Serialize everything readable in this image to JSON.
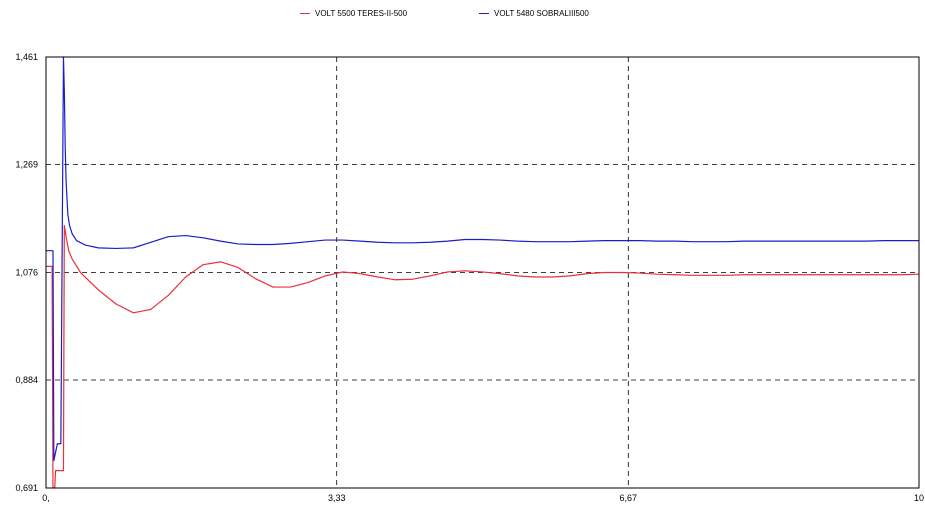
{
  "chart_data": {
    "type": "line",
    "title": "",
    "xlabel": "",
    "ylabel": "",
    "xlim": [
      0,
      10
    ],
    "ylim": [
      0.691,
      1.461
    ],
    "x_ticks": [
      "0,",
      "3,33",
      "6,67",
      "10"
    ],
    "y_ticks": [
      "0,691",
      "0,884",
      "1,076",
      "1,269",
      "1,461"
    ],
    "x_tick_values": [
      0,
      3.33,
      6.67,
      10
    ],
    "y_tick_values": [
      0.691,
      0.884,
      1.076,
      1.269,
      1.461
    ],
    "grid": true,
    "legend_position": "top",
    "series": [
      {
        "name": "VOLT 5500 TERES-II-500",
        "color": "#e8303a",
        "x": [
          0,
          0.07,
          0.08,
          0.1,
          0.11,
          0.2,
          0.21,
          0.23,
          0.26,
          0.3,
          0.4,
          0.6,
          0.8,
          1.0,
          1.2,
          1.4,
          1.6,
          1.8,
          2.0,
          2.2,
          2.4,
          2.6,
          2.8,
          3.0,
          3.2,
          3.4,
          3.6,
          3.8,
          4.0,
          4.2,
          4.4,
          4.6,
          4.8,
          5.0,
          5.2,
          5.4,
          5.6,
          5.8,
          6.0,
          6.2,
          6.4,
          6.6,
          6.8,
          7.0,
          7.2,
          7.4,
          7.6,
          7.8,
          8.0,
          8.2,
          8.4,
          8.6,
          8.8,
          9.0,
          9.2,
          9.4,
          9.6,
          9.8,
          10.0
        ],
        "y": [
          1.087,
          1.087,
          0.69,
          0.69,
          0.722,
          0.722,
          1.16,
          1.14,
          1.115,
          1.1,
          1.075,
          1.045,
          1.02,
          1.004,
          1.01,
          1.035,
          1.068,
          1.09,
          1.095,
          1.085,
          1.065,
          1.05,
          1.05,
          1.058,
          1.07,
          1.077,
          1.074,
          1.068,
          1.063,
          1.064,
          1.07,
          1.077,
          1.079,
          1.077,
          1.074,
          1.07,
          1.068,
          1.068,
          1.07,
          1.074,
          1.076,
          1.076,
          1.075,
          1.073,
          1.072,
          1.071,
          1.071,
          1.071,
          1.072,
          1.072,
          1.072,
          1.072,
          1.072,
          1.072,
          1.072,
          1.072,
          1.072,
          1.072,
          1.073
        ]
      },
      {
        "name": "VOLT 5480 SOBRALIII500",
        "color": "#1c1cc8",
        "x": [
          0,
          0.08,
          0.09,
          0.13,
          0.15,
          0.17,
          0.2,
          0.21,
          0.22,
          0.23,
          0.25,
          0.27,
          0.3,
          0.35,
          0.45,
          0.6,
          0.8,
          1.0,
          1.2,
          1.4,
          1.6,
          1.8,
          2.0,
          2.2,
          2.4,
          2.6,
          2.8,
          3.0,
          3.2,
          3.4,
          3.6,
          3.8,
          4.0,
          4.2,
          4.4,
          4.6,
          4.8,
          5.0,
          5.2,
          5.4,
          5.6,
          5.8,
          6.0,
          6.2,
          6.4,
          6.6,
          6.8,
          7.0,
          7.2,
          7.4,
          7.6,
          7.8,
          8.0,
          8.2,
          8.4,
          8.6,
          8.8,
          9.0,
          9.2,
          9.4,
          9.6,
          9.8,
          10.0
        ],
        "y": [
          1.115,
          1.115,
          0.74,
          0.77,
          0.77,
          0.77,
          1.5,
          1.4,
          1.3,
          1.24,
          1.18,
          1.16,
          1.145,
          1.133,
          1.125,
          1.12,
          1.119,
          1.12,
          1.13,
          1.14,
          1.142,
          1.138,
          1.132,
          1.127,
          1.126,
          1.126,
          1.128,
          1.131,
          1.134,
          1.134,
          1.132,
          1.13,
          1.129,
          1.129,
          1.13,
          1.132,
          1.135,
          1.135,
          1.134,
          1.132,
          1.131,
          1.131,
          1.131,
          1.132,
          1.133,
          1.133,
          1.133,
          1.132,
          1.132,
          1.131,
          1.131,
          1.131,
          1.132,
          1.132,
          1.132,
          1.132,
          1.132,
          1.132,
          1.132,
          1.132,
          1.133,
          1.133,
          1.133
        ]
      }
    ]
  }
}
